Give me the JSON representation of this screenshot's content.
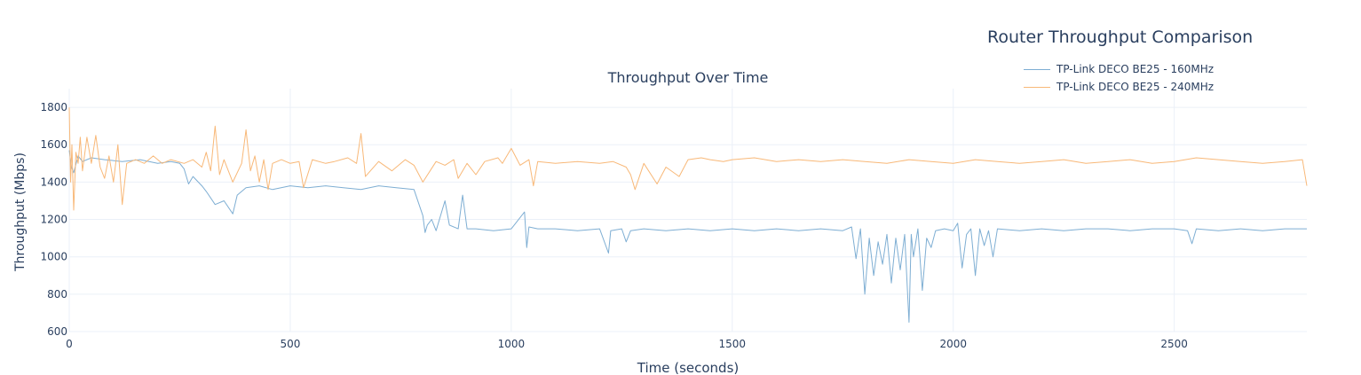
{
  "chart_data": {
    "type": "line",
    "title": "Router Throughput Comparison",
    "subtitle": "Throughput Over Time",
    "xlabel": "Time (seconds)",
    "ylabel": "Throughput (Mbps)",
    "xlim": [
      0,
      2800
    ],
    "ylim": [
      600,
      1900
    ],
    "x_ticks": [
      0,
      500,
      1000,
      1500,
      2000,
      2500
    ],
    "y_ticks": [
      600,
      800,
      1000,
      1200,
      1400,
      1600,
      1800
    ],
    "grid": true,
    "legend_position": "top-right",
    "series": [
      {
        "name": "TP-Link DECO BE25 - 160MHz",
        "color": "#7eaed3",
        "x": [
          0,
          5,
          10,
          20,
          30,
          50,
          80,
          120,
          160,
          200,
          230,
          250,
          260,
          270,
          280,
          300,
          310,
          330,
          350,
          370,
          380,
          400,
          430,
          460,
          500,
          540,
          580,
          620,
          660,
          700,
          740,
          780,
          800,
          805,
          810,
          820,
          830,
          850,
          860,
          880,
          890,
          900,
          920,
          960,
          1000,
          1030,
          1035,
          1040,
          1060,
          1100,
          1150,
          1200,
          1220,
          1225,
          1250,
          1260,
          1270,
          1300,
          1350,
          1400,
          1450,
          1500,
          1550,
          1600,
          1650,
          1700,
          1750,
          1770,
          1780,
          1790,
          1800,
          1810,
          1820,
          1830,
          1840,
          1850,
          1860,
          1870,
          1880,
          1890,
          1900,
          1905,
          1910,
          1920,
          1930,
          1940,
          1950,
          1960,
          1980,
          2000,
          2010,
          2020,
          2030,
          2040,
          2050,
          2060,
          2070,
          2080,
          2090,
          2100,
          2150,
          2200,
          2250,
          2300,
          2350,
          2400,
          2450,
          2500,
          2530,
          2540,
          2550,
          2600,
          2650,
          2700,
          2750,
          2800
        ],
        "values": [
          1570,
          1480,
          1450,
          1540,
          1510,
          1530,
          1520,
          1510,
          1520,
          1500,
          1510,
          1500,
          1470,
          1390,
          1430,
          1380,
          1350,
          1280,
          1300,
          1230,
          1330,
          1370,
          1380,
          1360,
          1380,
          1370,
          1380,
          1370,
          1360,
          1380,
          1370,
          1360,
          1220,
          1130,
          1170,
          1200,
          1140,
          1300,
          1170,
          1150,
          1330,
          1150,
          1150,
          1140,
          1150,
          1240,
          1050,
          1160,
          1150,
          1150,
          1140,
          1150,
          1020,
          1140,
          1150,
          1080,
          1140,
          1150,
          1140,
          1150,
          1140,
          1150,
          1140,
          1150,
          1140,
          1150,
          1140,
          1160,
          990,
          1150,
          800,
          1100,
          900,
          1080,
          960,
          1120,
          860,
          1100,
          930,
          1120,
          650,
          1120,
          1000,
          1150,
          820,
          1100,
          1050,
          1140,
          1150,
          1140,
          1180,
          940,
          1120,
          1150,
          900,
          1150,
          1060,
          1140,
          1000,
          1150,
          1140,
          1150,
          1140,
          1150,
          1150,
          1140,
          1150,
          1150,
          1140,
          1070,
          1150,
          1140,
          1150,
          1140,
          1150,
          1150
        ]
      },
      {
        "name": "TP-Link DECO BE25 - 240MHz",
        "color": "#f8b878",
        "x": [
          0,
          3,
          6,
          10,
          15,
          20,
          25,
          30,
          40,
          50,
          60,
          70,
          80,
          90,
          100,
          110,
          120,
          130,
          150,
          170,
          190,
          210,
          230,
          260,
          280,
          300,
          310,
          320,
          330,
          340,
          350,
          370,
          390,
          400,
          410,
          420,
          430,
          440,
          450,
          460,
          480,
          500,
          520,
          530,
          550,
          580,
          600,
          630,
          650,
          660,
          670,
          700,
          730,
          760,
          780,
          800,
          830,
          850,
          870,
          880,
          900,
          920,
          940,
          970,
          980,
          1000,
          1020,
          1040,
          1050,
          1060,
          1100,
          1150,
          1200,
          1230,
          1260,
          1270,
          1280,
          1300,
          1330,
          1350,
          1380,
          1400,
          1430,
          1450,
          1480,
          1500,
          1550,
          1600,
          1650,
          1700,
          1750,
          1800,
          1850,
          1900,
          1950,
          2000,
          2050,
          2100,
          2150,
          2200,
          2250,
          2300,
          2350,
          2400,
          2450,
          2500,
          2550,
          2600,
          2650,
          2700,
          2750,
          2790,
          2800
        ],
        "values": [
          1800,
          1400,
          1600,
          1250,
          1560,
          1500,
          1640,
          1460,
          1640,
          1500,
          1650,
          1480,
          1420,
          1540,
          1400,
          1600,
          1280,
          1500,
          1520,
          1500,
          1540,
          1500,
          1520,
          1500,
          1520,
          1480,
          1560,
          1460,
          1700,
          1440,
          1520,
          1400,
          1500,
          1680,
          1460,
          1540,
          1400,
          1520,
          1360,
          1500,
          1520,
          1500,
          1510,
          1370,
          1520,
          1500,
          1510,
          1530,
          1500,
          1660,
          1430,
          1510,
          1460,
          1520,
          1490,
          1400,
          1510,
          1490,
          1520,
          1420,
          1500,
          1440,
          1510,
          1530,
          1500,
          1580,
          1490,
          1520,
          1380,
          1510,
          1500,
          1510,
          1500,
          1510,
          1480,
          1440,
          1360,
          1500,
          1390,
          1480,
          1430,
          1520,
          1530,
          1520,
          1510,
          1520,
          1530,
          1510,
          1520,
          1510,
          1520,
          1510,
          1500,
          1520,
          1510,
          1500,
          1520,
          1510,
          1500,
          1510,
          1520,
          1500,
          1510,
          1520,
          1500,
          1510,
          1530,
          1520,
          1510,
          1500,
          1510,
          1520,
          1380
        ]
      }
    ]
  }
}
